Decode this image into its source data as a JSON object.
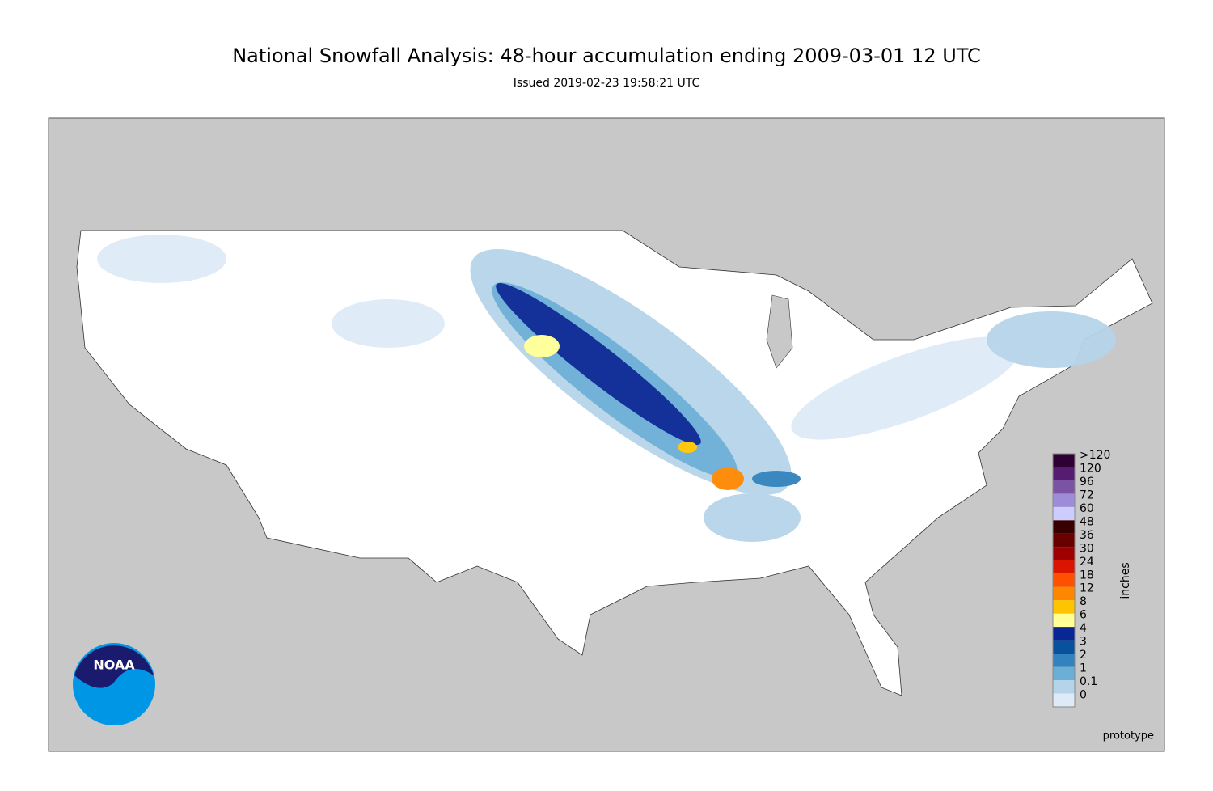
{
  "header": {
    "title": "National Snowfall Analysis: 48-hour accumulation ending 2009-03-01 12 UTC",
    "subtitle": "Issued 2019-02-23 19:58:21 UTC"
  },
  "map": {
    "logo": "NOAA",
    "note": "prototype"
  },
  "legend": {
    "unit": "inches",
    "levels": [
      {
        "label": ">120",
        "color": "#2e0033"
      },
      {
        "label": "120",
        "color": "#561c72"
      },
      {
        "label": "96",
        "color": "#7c52a5"
      },
      {
        "label": "72",
        "color": "#9f8cd8"
      },
      {
        "label": "60",
        "color": "#ccccff"
      },
      {
        "label": "48",
        "color": "#360000"
      },
      {
        "label": "36",
        "color": "#690000"
      },
      {
        "label": "30",
        "color": "#9e0000"
      },
      {
        "label": "24",
        "color": "#db1400"
      },
      {
        "label": "18",
        "color": "#ff4f00"
      },
      {
        "label": "12",
        "color": "#ff8700"
      },
      {
        "label": "8",
        "color": "#ffc400"
      },
      {
        "label": "6",
        "color": "#ffff96"
      },
      {
        "label": "4",
        "color": "#082694"
      },
      {
        "label": "3",
        "color": "#08519c"
      },
      {
        "label": "2",
        "color": "#3182bd"
      },
      {
        "label": "1",
        "color": "#6baed6"
      },
      {
        "label": "0.1",
        "color": "#b6d4e9"
      },
      {
        "label": "0",
        "color": "#deebf7"
      }
    ]
  }
}
